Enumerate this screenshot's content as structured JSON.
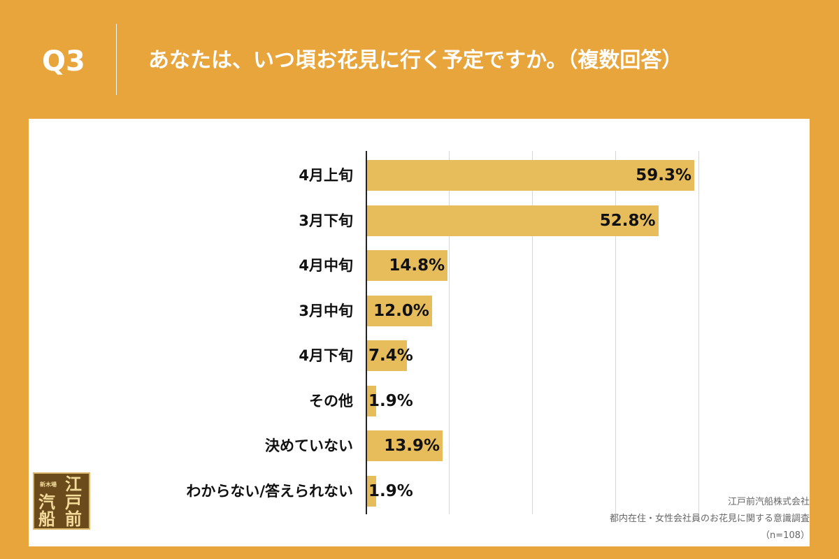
{
  "header": {
    "q_number": "Q3",
    "question": "あなたは、いつ頃お花見に行く予定ですか。（複数回答）"
  },
  "chart_data": {
    "type": "bar",
    "orientation": "horizontal",
    "categories": [
      "4月上旬",
      "3月下旬",
      "4月中旬",
      "3月中旬",
      "4月下旬",
      "その他",
      "決めていない",
      "わからない/答えられない"
    ],
    "values": [
      59.3,
      52.8,
      14.8,
      12.0,
      7.4,
      1.9,
      13.9,
      1.9
    ],
    "value_labels": [
      "59.3%",
      "52.8%",
      "14.8%",
      "12.0%",
      "7.4%",
      "1.9%",
      "13.9%",
      "1.9%"
    ],
    "unit": "%",
    "xlim": [
      0,
      60
    ],
    "grid": true,
    "bar_color": "#e6bd5a"
  },
  "footer": {
    "company": "江戸前汽船株式会社",
    "survey": "都内在住・女性会社員のお花見に関する意識調査",
    "sample": "（n=108）"
  },
  "logo": {
    "small_text": "新木場",
    "chars": [
      "江",
      "戸",
      "汽",
      "船",
      "前"
    ]
  },
  "colors": {
    "background": "#e8a53c",
    "panel": "#ffffff",
    "bar": "#e6bd5a"
  }
}
